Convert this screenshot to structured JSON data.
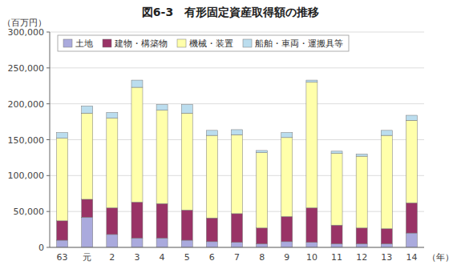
{
  "chart_data": {
    "type": "bar",
    "stacked": true,
    "title": "図6-3　有形固定資産取得額の推移",
    "ylabel": "（百万円）",
    "xlabel": "（年）",
    "categories": [
      "63",
      "元",
      "2",
      "3",
      "4",
      "5",
      "6",
      "7",
      "8",
      "9",
      "10",
      "11",
      "12",
      "13",
      "14"
    ],
    "series": [
      {
        "name": "土地",
        "color": "#aaaadd",
        "values": [
          10000,
          42000,
          18000,
          13000,
          13000,
          10000,
          8000,
          7000,
          5000,
          8000,
          7000,
          5000,
          5000,
          5000,
          20000
        ]
      },
      {
        "name": "建物・構築物",
        "color": "#993366",
        "values": [
          27000,
          25000,
          37000,
          50000,
          48000,
          42000,
          33000,
          40000,
          22000,
          35000,
          48000,
          26000,
          22000,
          21000,
          42000
        ]
      },
      {
        "name": "機械・装置",
        "color": "#ffffaa",
        "values": [
          115000,
          120000,
          125000,
          160000,
          130000,
          135000,
          115000,
          110000,
          105000,
          110000,
          175000,
          100000,
          100000,
          130000,
          115000
        ]
      },
      {
        "name": "船舶・車両・運搬具等",
        "color": "#bbddee",
        "values": [
          8000,
          10000,
          8000,
          10000,
          8000,
          12000,
          7000,
          7000,
          3000,
          7000,
          3000,
          3000,
          3000,
          7000,
          7000
        ]
      }
    ],
    "ylim": [
      0,
      300000
    ],
    "yticks": [
      0,
      {
        "value": 50000,
        "label": "50,000"
      },
      {
        "value": 100000,
        "label": "100,000"
      },
      {
        "value": 150000,
        "label": "150,000"
      },
      {
        "value": 200000,
        "label": "200,000"
      },
      {
        "value": 250000,
        "label": "250,000"
      },
      {
        "value": 300000,
        "label": "300,000"
      }
    ],
    "grid": true,
    "legend": "upper left"
  }
}
